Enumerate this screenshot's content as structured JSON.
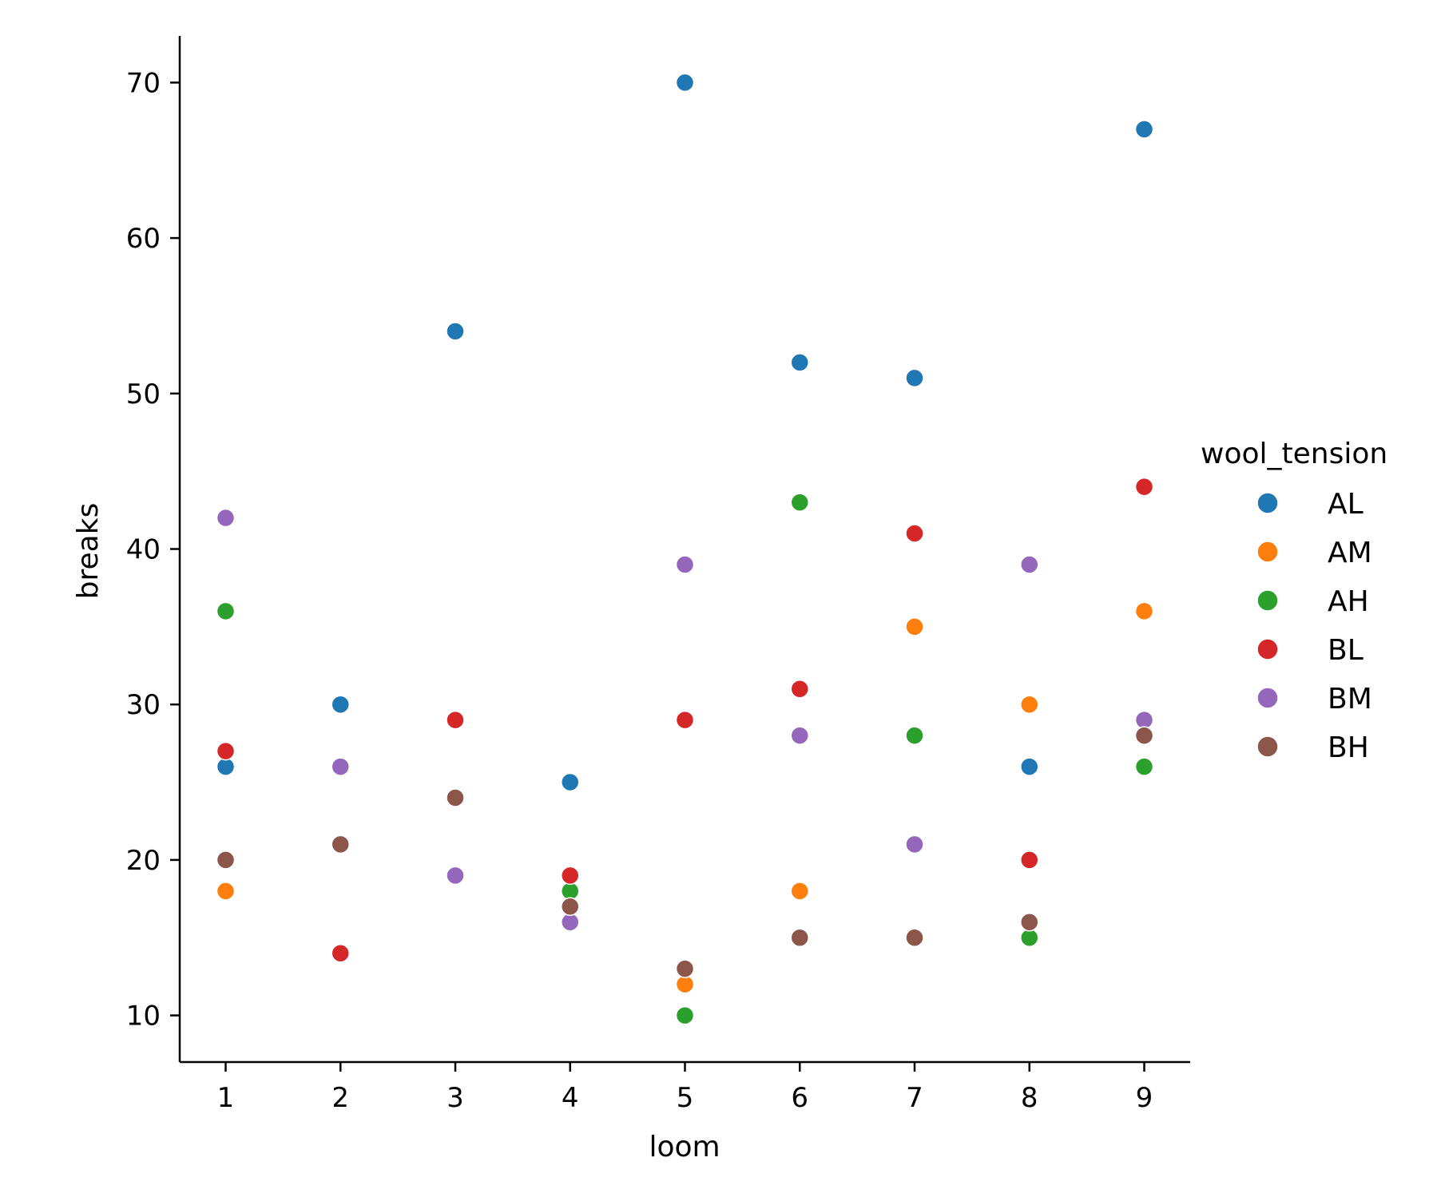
{
  "chart_data": {
    "type": "scatter",
    "xlabel": "loom",
    "ylabel": "breaks",
    "xlim": [
      0.6,
      9.4
    ],
    "ylim": [
      7,
      73
    ],
    "x_ticks": [
      1,
      2,
      3,
      4,
      5,
      6,
      7,
      8,
      9
    ],
    "y_ticks": [
      10,
      20,
      30,
      40,
      50,
      60,
      70
    ],
    "grid": false,
    "legend": {
      "title": "wool_tension",
      "placement": "right"
    },
    "series": [
      {
        "name": "AL",
        "color": "#1f77b4",
        "points": [
          [
            1,
            26
          ],
          [
            2,
            30
          ],
          [
            3,
            54
          ],
          [
            4,
            25
          ],
          [
            5,
            70
          ],
          [
            6,
            52
          ],
          [
            7,
            51
          ],
          [
            8,
            26
          ],
          [
            9,
            67
          ]
        ]
      },
      {
        "name": "AM",
        "color": "#ff7f0e",
        "points": [
          [
            1,
            18
          ],
          [
            5,
            12
          ],
          [
            6,
            18
          ],
          [
            7,
            35
          ],
          [
            8,
            30
          ],
          [
            9,
            36
          ]
        ]
      },
      {
        "name": "AH",
        "color": "#2ca02c",
        "points": [
          [
            1,
            36
          ],
          [
            4,
            18
          ],
          [
            5,
            10
          ],
          [
            6,
            43
          ],
          [
            7,
            28
          ],
          [
            8,
            15
          ],
          [
            9,
            26
          ]
        ]
      },
      {
        "name": "BL",
        "color": "#d62728",
        "points": [
          [
            1,
            27
          ],
          [
            2,
            14
          ],
          [
            3,
            29
          ],
          [
            4,
            19
          ],
          [
            5,
            29
          ],
          [
            6,
            31
          ],
          [
            7,
            41
          ],
          [
            8,
            20
          ],
          [
            9,
            44
          ]
        ]
      },
      {
        "name": "BM",
        "color": "#9467bd",
        "points": [
          [
            1,
            42
          ],
          [
            2,
            26
          ],
          [
            3,
            19
          ],
          [
            4,
            16
          ],
          [
            5,
            39
          ],
          [
            6,
            28
          ],
          [
            7,
            21
          ],
          [
            8,
            39
          ],
          [
            9,
            29
          ]
        ]
      },
      {
        "name": "BH",
        "color": "#8c564b",
        "points": [
          [
            1,
            20
          ],
          [
            2,
            21
          ],
          [
            3,
            24
          ],
          [
            4,
            17
          ],
          [
            5,
            13
          ],
          [
            6,
            15
          ],
          [
            7,
            15
          ],
          [
            8,
            16
          ],
          [
            9,
            28
          ]
        ]
      }
    ]
  }
}
